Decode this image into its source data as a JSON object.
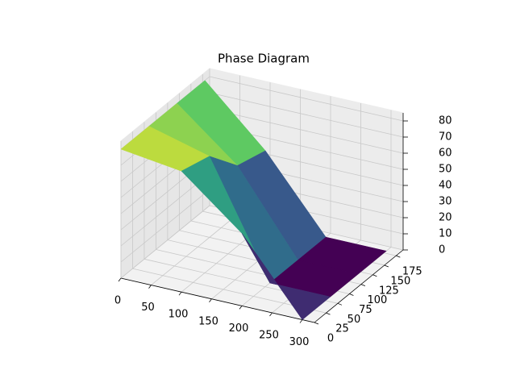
{
  "chart_data": {
    "type": "surface3d",
    "title": "Phase Diagram",
    "x": [
      0,
      100,
      200,
      300
    ],
    "y": [
      0,
      60,
      120,
      180
    ],
    "z": [
      [
        80,
        75,
        45,
        0
      ],
      [
        80,
        70,
        0,
        0
      ],
      [
        80,
        50,
        0,
        0
      ],
      [
        80,
        45,
        0,
        0
      ]
    ],
    "xlim": [
      0,
      320
    ],
    "ylim": [
      0,
      190
    ],
    "zlim": [
      0,
      85
    ],
    "xticks": [
      0,
      50,
      100,
      150,
      200,
      250,
      300
    ],
    "yticks": [
      0,
      25,
      50,
      75,
      100,
      125,
      150,
      175
    ],
    "zticks": [
      0,
      10,
      20,
      30,
      40,
      50,
      60,
      70,
      80
    ],
    "colormap": "viridis",
    "grid": true
  }
}
